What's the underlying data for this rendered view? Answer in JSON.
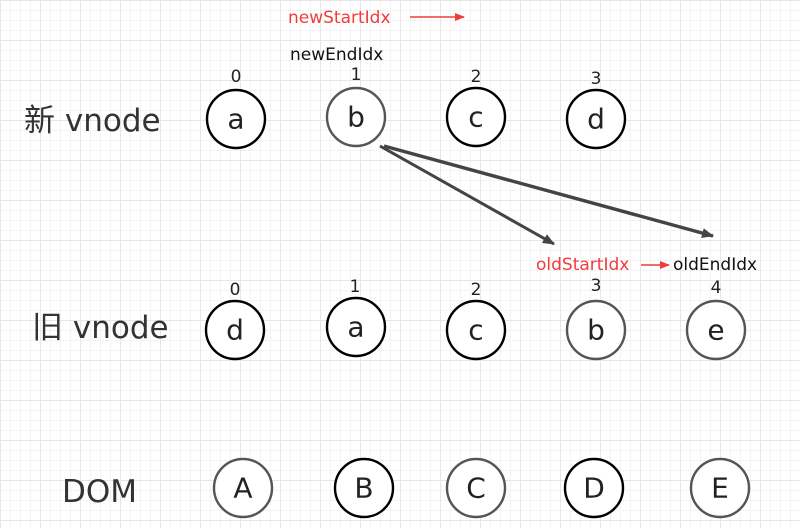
{
  "rows": {
    "new_vnode": {
      "label": "新 vnode",
      "indices": [
        "0",
        "1",
        "2",
        "3"
      ],
      "nodes": [
        "a",
        "b",
        "c",
        "d"
      ]
    },
    "old_vnode": {
      "label": "旧 vnode",
      "indices": [
        "0",
        "1",
        "2",
        "3",
        "4"
      ],
      "nodes": [
        "d",
        "a",
        "c",
        "b",
        "e"
      ]
    },
    "dom": {
      "label": "DOM",
      "nodes": [
        "A",
        "B",
        "C",
        "D",
        "E"
      ]
    }
  },
  "pointers": {
    "new_start": "newStartIdx",
    "new_end": "newEndIdx",
    "old_start": "oldStartIdx",
    "old_end": "oldEndIdx"
  },
  "colors": {
    "pointer_red": "#f03c3c",
    "node_stroke_dark": "#000000",
    "node_stroke_gray": "#555555",
    "arrow": "#444444"
  }
}
